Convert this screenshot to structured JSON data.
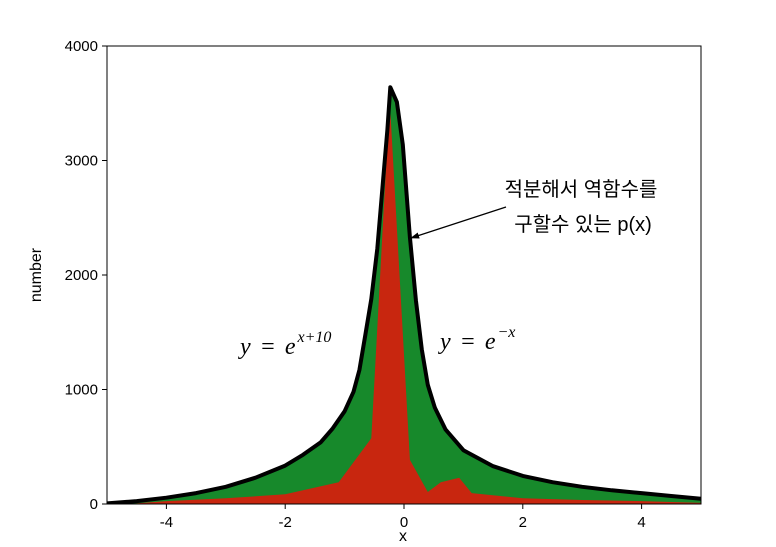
{
  "chart_data": {
    "type": "area",
    "xlabel": "x",
    "ylabel": "number",
    "xlim": [
      -5,
      5
    ],
    "ylim": [
      0,
      4000
    ],
    "x_ticks": [
      -4,
      -2,
      0,
      2,
      4
    ],
    "x_tick_labels": [
      "-4",
      "-2",
      "0",
      "2",
      "4"
    ],
    "y_ticks": [
      0,
      1000,
      2000,
      3000,
      4000
    ],
    "y_tick_labels": [
      "0",
      "1000",
      "2000",
      "3000",
      "4000"
    ],
    "grid": false,
    "legend": false,
    "series": [
      {
        "color": "#17892b",
        "outline": "#000000",
        "points": [
          [
            -5,
            5
          ],
          [
            -4.5,
            25
          ],
          [
            -4,
            55
          ],
          [
            -3.5,
            95
          ],
          [
            -3,
            150
          ],
          [
            -2.5,
            230
          ],
          [
            -2,
            335
          ],
          [
            -1.7,
            430
          ],
          [
            -1.4,
            540
          ],
          [
            -1.2,
            660
          ],
          [
            -1,
            810
          ],
          [
            -0.85,
            980
          ],
          [
            -0.75,
            1170
          ],
          [
            -0.65,
            1480
          ],
          [
            -0.55,
            1790
          ],
          [
            -0.45,
            2230
          ],
          [
            -0.35,
            2840
          ],
          [
            -0.28,
            3270
          ],
          [
            -0.23,
            3640
          ],
          [
            -0.12,
            3510
          ],
          [
            -0.02,
            3140
          ],
          [
            0.1,
            2330
          ],
          [
            0.2,
            1780
          ],
          [
            0.3,
            1350
          ],
          [
            0.4,
            1040
          ],
          [
            0.52,
            840
          ],
          [
            0.7,
            650
          ],
          [
            1,
            470
          ],
          [
            1.5,
            330
          ],
          [
            2,
            245
          ],
          [
            2.5,
            190
          ],
          [
            3,
            150
          ],
          [
            3.5,
            120
          ],
          [
            4,
            95
          ],
          [
            4.5,
            70
          ],
          [
            5,
            45
          ]
        ]
      },
      {
        "color": "#c8260f",
        "points": [
          [
            -4.65,
            0
          ],
          [
            -4,
            25
          ],
          [
            -3,
            50
          ],
          [
            -2,
            85
          ],
          [
            -1.1,
            190
          ],
          [
            -0.55,
            575
          ],
          [
            -0.24,
            3530
          ],
          [
            0.1,
            385
          ],
          [
            0.4,
            105
          ],
          [
            0.62,
            190
          ],
          [
            0.93,
            230
          ],
          [
            1.14,
            95
          ],
          [
            2,
            50
          ],
          [
            3,
            35
          ],
          [
            4,
            25
          ],
          [
            5,
            10
          ]
        ]
      }
    ],
    "annotations": {
      "callout_line1": "적분해서 역함수를",
      "callout_line2": "구할수 있는 p(x)",
      "left_formula": {
        "base": "y = e",
        "exponent": "x+10"
      },
      "right_formula": {
        "base": "y = e",
        "exponent": "−x"
      }
    }
  }
}
